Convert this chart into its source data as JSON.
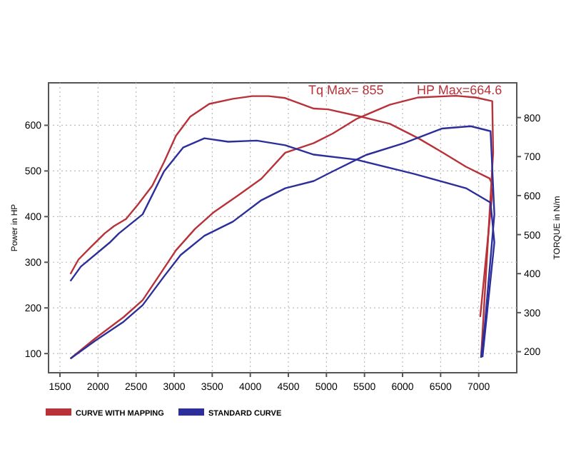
{
  "chart_data": {
    "type": "line",
    "ylabel": "Power in HP",
    "y2label": "TORQUE in N/m",
    "annotations": [
      "Tq Max= 855",
      "HP Max=664.6"
    ],
    "xlim": [
      1350,
      7500
    ],
    "xticks": [
      1500,
      2000,
      2500,
      3000,
      3500,
      4000,
      4500,
      5000,
      5500,
      6000,
      6500,
      7000
    ],
    "ylim": [
      58,
      693
    ],
    "yticks": [
      100,
      200,
      300,
      400,
      500,
      600
    ],
    "y2lim": [
      146,
      889
    ],
    "y2ticks": [
      200,
      300,
      400,
      500,
      600,
      700,
      800
    ],
    "grid": true,
    "legend": "bottom",
    "marker": "none",
    "line_style": "solid",
    "series": [
      {
        "name": "CURVE WITH MAPPING",
        "color": "#b8323a",
        "x": [
          1637,
          1962,
          2337,
          2586,
          2836,
          3023,
          3273,
          3523,
          3835,
          4146,
          4459,
          4834,
          5083,
          5396,
          5833,
          6208,
          6700,
          6958,
          7178,
          7190,
          7031
        ],
        "values": [
          89,
          133,
          180,
          217,
          279,
          326,
          373,
          410,
          446,
          483,
          540,
          561,
          582,
          614,
          645,
          661,
          664.6,
          661,
          653,
          540,
          91
        ]
      },
      {
        "color": "#b8323a",
        "axis": "y2",
        "x": [
          1637,
          1743,
          1899,
          2087,
          2212,
          2367,
          2524,
          2712,
          2867,
          3023,
          3210,
          3461,
          3772,
          4023,
          4240,
          4459,
          4834,
          5021,
          5458,
          5833,
          6208,
          6521,
          6833,
          7143,
          7188,
          7020
        ],
        "values": [
          399,
          436,
          467,
          503,
          522,
          540,
          577,
          625,
          686,
          753,
          802,
          835,
          848,
          855,
          855,
          850,
          823,
          821,
          802,
          784,
          747,
          711,
          674,
          644,
          625,
          289
        ]
      },
      {
        "name": "STANDARD CURVE",
        "color": "#2c2f9a",
        "x": [
          1637,
          1962,
          2337,
          2586,
          2867,
          3086,
          3398,
          3772,
          4146,
          4459,
          4834,
          5083,
          5521,
          6021,
          6521,
          6896,
          7156,
          7206,
          7081,
          7031
        ],
        "values": [
          89,
          128,
          170,
          206,
          269,
          316,
          358,
          389,
          436,
          462,
          478,
          499,
          535,
          561,
          593,
          598,
          587,
          405,
          164,
          91
        ]
      },
      {
        "color": "#2c2f9a",
        "axis": "y2",
        "x": [
          1637,
          1774,
          2150,
          2274,
          2586,
          2867,
          3117,
          3398,
          3710,
          4085,
          4459,
          4834,
          5396,
          6146,
          6833,
          7156,
          7206,
          7050
        ],
        "values": [
          381,
          418,
          479,
          503,
          552,
          662,
          723,
          747,
          738,
          741,
          729,
          705,
          692,
          656,
          619,
          582,
          480,
          186
        ]
      }
    ]
  }
}
